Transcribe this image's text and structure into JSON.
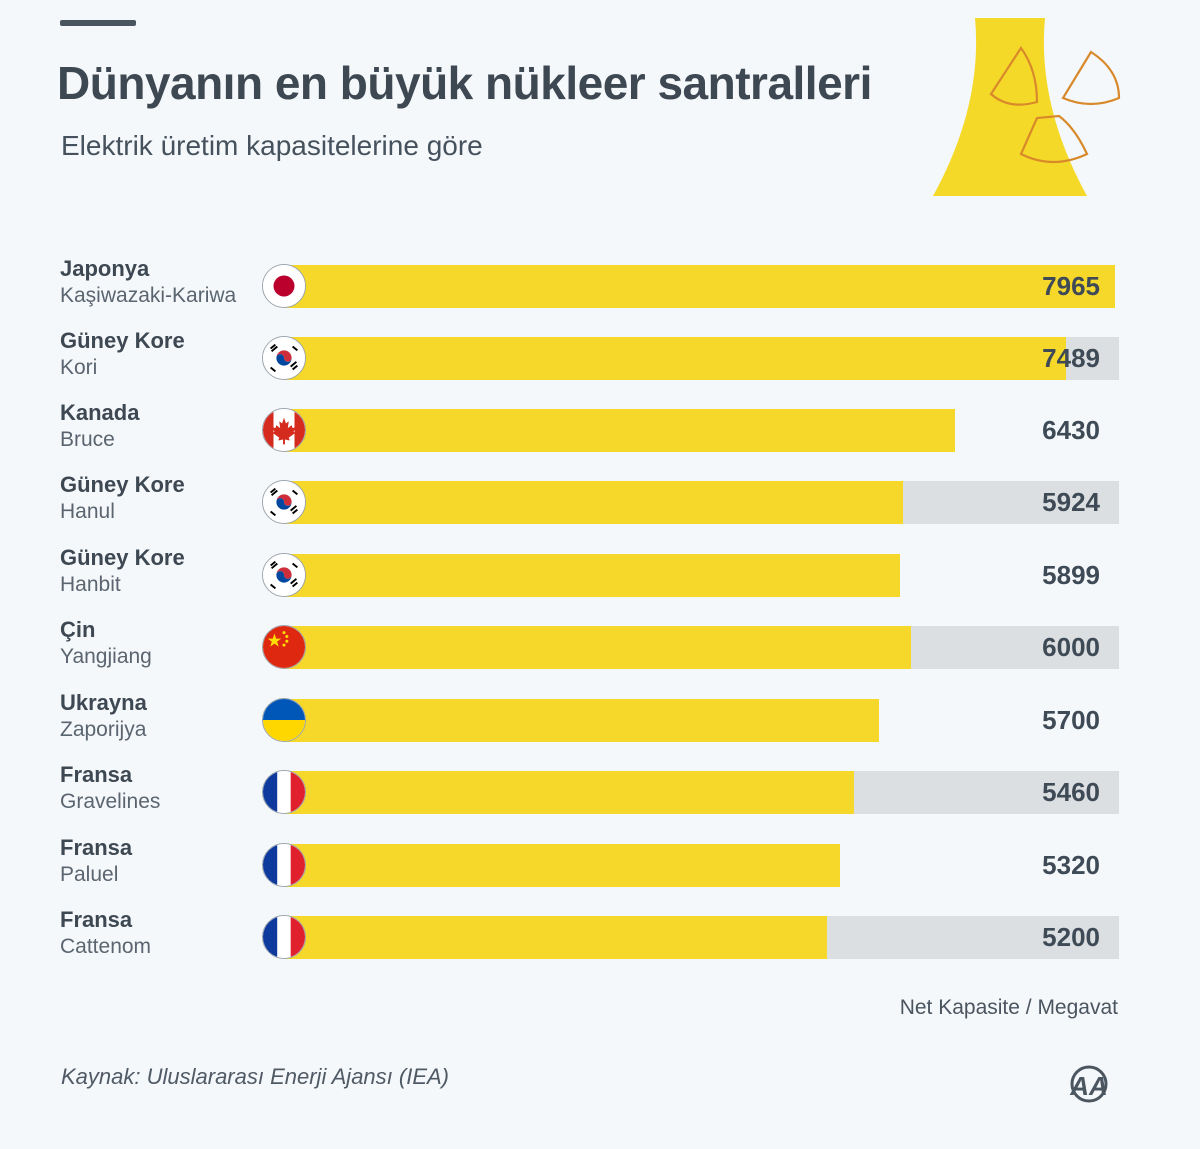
{
  "header": {
    "title": "Dünyanın en büyük nükleer santralleri",
    "subtitle": "Elektrik üretim kapasitelerine göre"
  },
  "chart_data": {
    "type": "bar",
    "orientation": "horizontal",
    "title": "Dünyanın en büyük nükleer santralleri",
    "subtitle": "Elektrik üretim kapasitelerine göre",
    "unit_label": "Net Kapasite / Megavat",
    "xlim": [
      0,
      8000
    ],
    "grid": false,
    "bar_color": "#f6d82a",
    "track_color": "#dcdfe2",
    "categories": [
      {
        "country": "Japonya",
        "plant": "Kaşiwazaki-Kariwa",
        "value": 7965,
        "value_label": "7965",
        "flag": "japan-flag"
      },
      {
        "country": "Güney Kore",
        "plant": "Kori",
        "value": 7489,
        "value_label": "7489",
        "flag": "south-korea-flag"
      },
      {
        "country": "Kanada",
        "plant": "Bruce",
        "value": 6430,
        "value_label": "6430",
        "flag": "canada-flag"
      },
      {
        "country": "Güney Kore",
        "plant": "Hanul",
        "value": 5924,
        "value_label": "5924",
        "flag": "south-korea-flag"
      },
      {
        "country": "Güney Kore",
        "plant": "Hanbit",
        "value": 5899,
        "value_label": "5899",
        "flag": "south-korea-flag"
      },
      {
        "country": "Çin",
        "plant": "Yangjiang",
        "value": 6000,
        "value_label": "6000",
        "flag": "china-flag"
      },
      {
        "country": "Ukrayna",
        "plant": "Zaporijya",
        "value": 5700,
        "value_label": "5700",
        "flag": "ukraine-flag"
      },
      {
        "country": "Fransa",
        "plant": "Gravelines",
        "value": 5460,
        "value_label": "5460",
        "flag": "france-flag"
      },
      {
        "country": "Fransa",
        "plant": "Paluel",
        "value": 5320,
        "value_label": "5320",
        "flag": "france-flag"
      },
      {
        "country": "Fransa",
        "plant": "Cattenom",
        "value": 5200,
        "value_label": "5200",
        "flag": "france-flag"
      }
    ]
  },
  "footer": {
    "unit": "Net Kapasite / Megavat",
    "source": "Kaynak: Uluslararası Enerji Ajansı (IEA)",
    "logo_text": "AA"
  }
}
